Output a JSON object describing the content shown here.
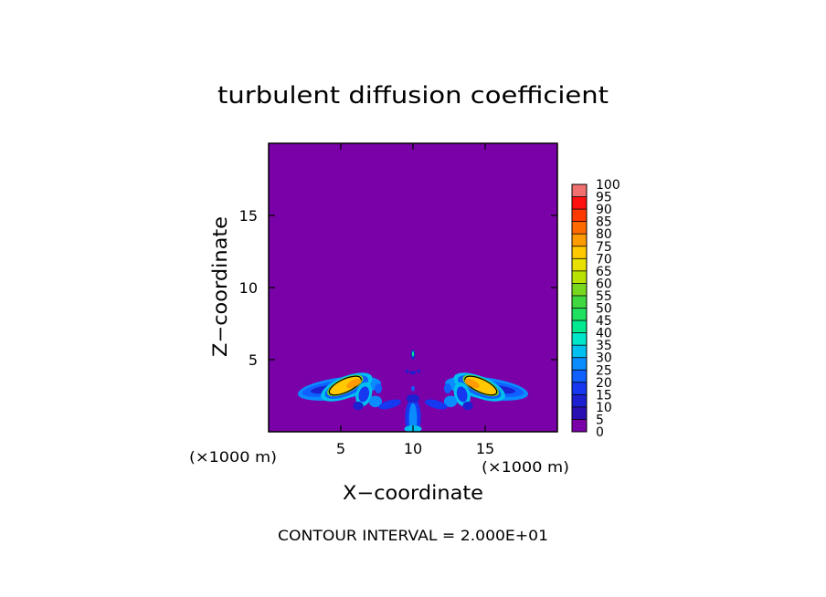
{
  "chart_data": {
    "type": "heatmap",
    "title": "turbulent diffusion coefficient",
    "xlabel": "X−coordinate",
    "ylabel": "Z−coordinate",
    "x_unit": "(×1000 m)",
    "y_unit": "(×1000 m)",
    "xlim": [
      0,
      20
    ],
    "ylim": [
      0,
      20
    ],
    "x_ticks": [
      5,
      10,
      15
    ],
    "y_ticks": [
      5,
      10,
      15
    ],
    "footer": "CONTOUR INTERVAL = 2.000E+01",
    "colorbar": {
      "levels": [
        0,
        5,
        10,
        15,
        20,
        25,
        30,
        35,
        40,
        45,
        50,
        55,
        60,
        65,
        70,
        75,
        80,
        85,
        90,
        95,
        100
      ],
      "colors": [
        "#7a00a8",
        "#2a0fb3",
        "#1c20d0",
        "#1538f0",
        "#1060ff",
        "#0a8cff",
        "#00c0f0",
        "#00e6c8",
        "#00e890",
        "#20e060",
        "#40d840",
        "#78d820",
        "#b8e000",
        "#e8e000",
        "#ffc800",
        "#ff9a00",
        "#ff6a00",
        "#ff3a00",
        "#ff1010",
        "#f07070"
      ]
    },
    "background_level": 0,
    "features": [
      {
        "name": "left-lobe",
        "x": 5.6,
        "z": 3.0,
        "peak": 70
      },
      {
        "name": "right-lobe",
        "x": 14.4,
        "z": 3.0,
        "peak": 70
      },
      {
        "name": "central-column",
        "x": 10,
        "z": 1.2,
        "peak": 25
      },
      {
        "name": "upper-cell",
        "x": 10,
        "z": 5.3,
        "peak": 15
      }
    ]
  }
}
